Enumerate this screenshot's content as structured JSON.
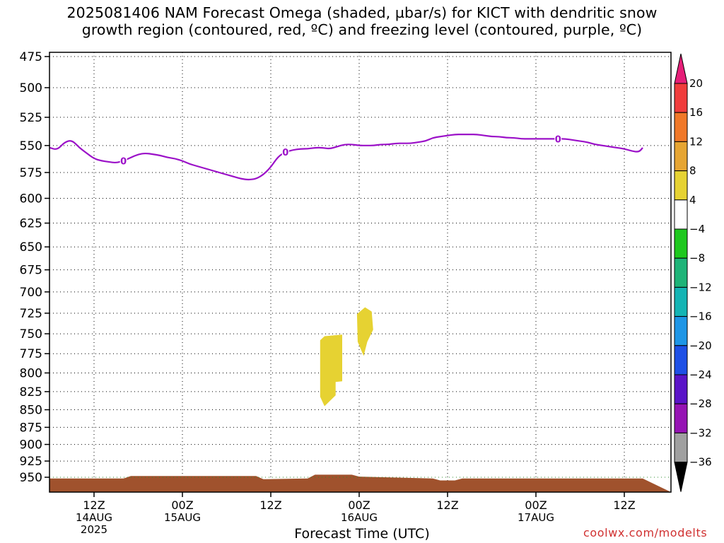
{
  "title": {
    "line1": "2025081406 NAM Forecast Omega (shaded, µbar/s) for KICT with dendritic snow",
    "line2": "growth region (contoured, red, ºC) and freezing level (contoured, purple, ºC)"
  },
  "watermark": "coolwx.com/modelts",
  "chart_data": {
    "type": "contour",
    "xlabel": "Forecast Time (UTC)",
    "ylabel": "",
    "y_scale": "log-pressure",
    "y_inverted": true,
    "ylim": [
      475,
      960
    ],
    "y_ticks": [
      475,
      500,
      525,
      550,
      575,
      600,
      625,
      650,
      675,
      700,
      725,
      750,
      775,
      800,
      825,
      850,
      875,
      900,
      925,
      950
    ],
    "x_unit": "forecast hour",
    "xlim": [
      0,
      70
    ],
    "x_ticks": [
      {
        "hour": 6,
        "lines": [
          "12Z",
          "14AUG",
          "2025"
        ]
      },
      {
        "hour": 18,
        "lines": [
          "00Z",
          "15AUG"
        ]
      },
      {
        "hour": 30,
        "lines": [
          "12Z"
        ]
      },
      {
        "hour": 42,
        "lines": [
          "00Z",
          "16AUG"
        ]
      },
      {
        "hour": 54,
        "lines": [
          "12Z"
        ]
      },
      {
        "hour": 66,
        "lines": [
          "00Z",
          "17AUG"
        ]
      },
      {
        "hour": 78,
        "lines": [
          "12Z"
        ]
      }
    ],
    "grid": true,
    "colorbar": {
      "unit": "µbar/s",
      "labels": [
        "20",
        "16",
        "12",
        "8",
        "4",
        "−4",
        "−8",
        "−12",
        "−16",
        "−20",
        "−24",
        "−28",
        "−32",
        "−36"
      ],
      "colors_top_to_bottom": [
        "#e61e78",
        "#f03c3c",
        "#f07828",
        "#e6a532",
        "#e6d232",
        "#ffffff",
        "#1ec81e",
        "#1eb478",
        "#14b4b4",
        "#1e96e6",
        "#1e50e6",
        "#5a14c8",
        "#9614b4",
        "#a0a0a0",
        "#000000"
      ]
    },
    "freezing_level": {
      "color": "#9b10c8",
      "label": "0",
      "label_hours": [
        10,
        32,
        69
      ],
      "points": [
        [
          0,
          552
        ],
        [
          1,
          554
        ],
        [
          2,
          547
        ],
        [
          3,
          545
        ],
        [
          4,
          552
        ],
        [
          5,
          557
        ],
        [
          6,
          562
        ],
        [
          7,
          564
        ],
        [
          8,
          565
        ],
        [
          9,
          566
        ],
        [
          10,
          564
        ],
        [
          11,
          561
        ],
        [
          12,
          558
        ],
        [
          13,
          557
        ],
        [
          14,
          558
        ],
        [
          15,
          559
        ],
        [
          16,
          561
        ],
        [
          17,
          562
        ],
        [
          18,
          564
        ],
        [
          19,
          567
        ],
        [
          20,
          569
        ],
        [
          21,
          571
        ],
        [
          22,
          573
        ],
        [
          23,
          575
        ],
        [
          24,
          577
        ],
        [
          25,
          579
        ],
        [
          26,
          581
        ],
        [
          27,
          582
        ],
        [
          28,
          581
        ],
        [
          29,
          577
        ],
        [
          30,
          570
        ],
        [
          31,
          560
        ],
        [
          32,
          556
        ],
        [
          33,
          554
        ],
        [
          34,
          553
        ],
        [
          35,
          553
        ],
        [
          36,
          552
        ],
        [
          37,
          552
        ],
        [
          38,
          553
        ],
        [
          39,
          551
        ],
        [
          40,
          549
        ],
        [
          41,
          549
        ],
        [
          42,
          550
        ],
        [
          43,
          550
        ],
        [
          44,
          550
        ],
        [
          45,
          549
        ],
        [
          46,
          549
        ],
        [
          47,
          548
        ],
        [
          48,
          548
        ],
        [
          49,
          548
        ],
        [
          50,
          547
        ],
        [
          51,
          546
        ],
        [
          52,
          543
        ],
        [
          53,
          542
        ],
        [
          54,
          541
        ],
        [
          55,
          540
        ],
        [
          56,
          540
        ],
        [
          57,
          540
        ],
        [
          58,
          540
        ],
        [
          59,
          541
        ],
        [
          60,
          542
        ],
        [
          61,
          542
        ],
        [
          62,
          543
        ],
        [
          63,
          543
        ],
        [
          64,
          544
        ],
        [
          65,
          544
        ],
        [
          66,
          544
        ],
        [
          67,
          544
        ],
        [
          68,
          544
        ],
        [
          69,
          544
        ],
        [
          70,
          544
        ],
        [
          71,
          545
        ],
        [
          72,
          546
        ],
        [
          73,
          547
        ],
        [
          74,
          549
        ],
        [
          75,
          550
        ],
        [
          76,
          551
        ],
        [
          77,
          552
        ],
        [
          78,
          553
        ],
        [
          79,
          555
        ],
        [
          80,
          556
        ],
        [
          80.5,
          552
        ]
      ]
    },
    "omega_regions": [
      {
        "value_range": [
          4,
          8
        ],
        "color": "#e6d232",
        "polygon": [
          [
            37.3,
            753
          ],
          [
            39.7,
            751
          ],
          [
            39.7,
            811
          ],
          [
            38.8,
            812
          ],
          [
            38.8,
            830
          ],
          [
            37.3,
            845
          ],
          [
            36.7,
            832
          ],
          [
            36.7,
            758
          ]
        ]
      },
      {
        "value_range": [
          4,
          8
        ],
        "color": "#e6d232",
        "polygon": [
          [
            42.8,
            718
          ],
          [
            43.7,
            723
          ],
          [
            43.9,
            745
          ],
          [
            43.1,
            760
          ],
          [
            42.6,
            778
          ],
          [
            41.8,
            760
          ],
          [
            41.7,
            726
          ]
        ]
      }
    ],
    "surface_pressure": {
      "color": "#a0522d",
      "points": [
        [
          0,
          952
        ],
        [
          10,
          952
        ],
        [
          11,
          948
        ],
        [
          28,
          948
        ],
        [
          29,
          953
        ],
        [
          35,
          952
        ],
        [
          36,
          946
        ],
        [
          41,
          946
        ],
        [
          42,
          949
        ],
        [
          52,
          952
        ],
        [
          53,
          955
        ],
        [
          55,
          955
        ],
        [
          56,
          952
        ],
        [
          80.5,
          952
        ]
      ]
    }
  }
}
